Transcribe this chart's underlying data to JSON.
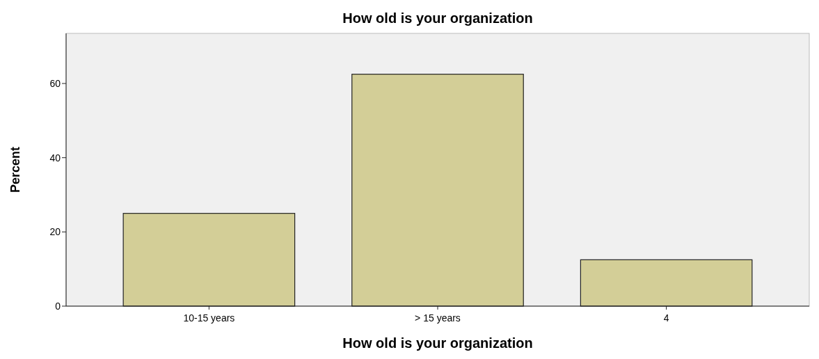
{
  "chart_data": {
    "type": "bar",
    "title": "How old is your organization",
    "xlabel": "How old is your organization",
    "ylabel": "Percent",
    "categories": [
      "10-15 years",
      "> 15 years",
      "4"
    ],
    "values": [
      25,
      62.5,
      12.5
    ],
    "color": "#d3ce97",
    "ylim": [
      0,
      73.5
    ],
    "yticks": [
      0,
      20,
      40,
      60
    ],
    "grid": false
  }
}
